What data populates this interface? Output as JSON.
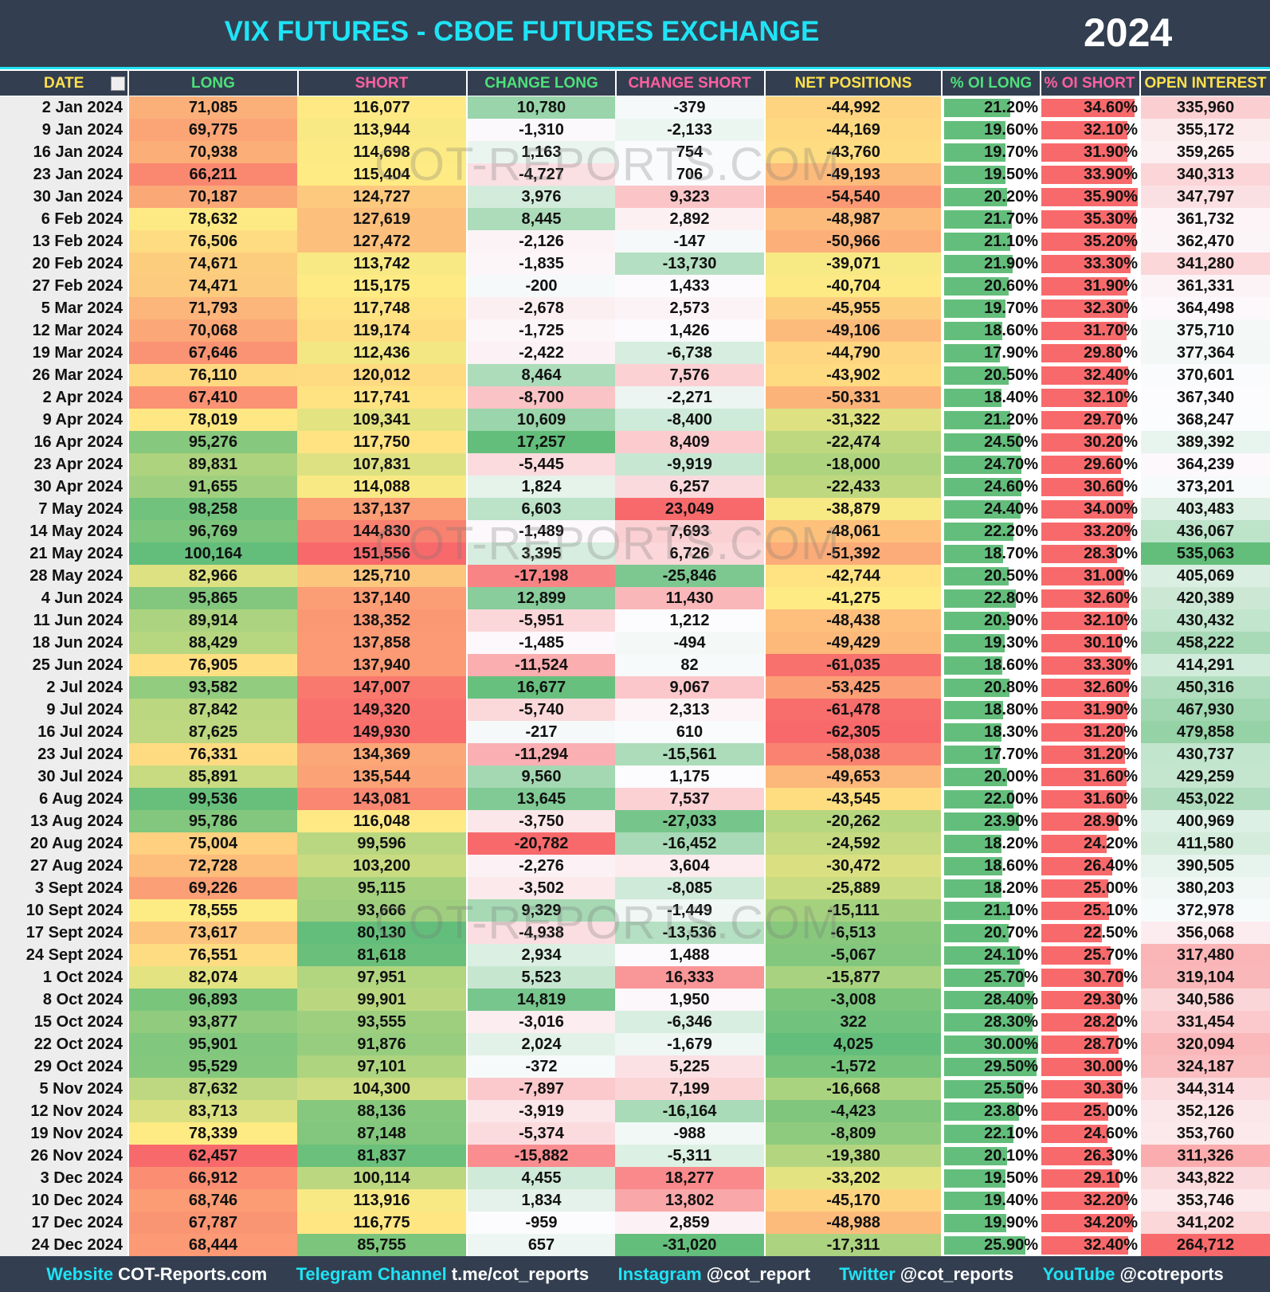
{
  "header": {
    "title": "VIX FUTURES - CBOE FUTURES EXCHANGE",
    "year": "2024"
  },
  "watermark": "COT-REPORTS.COM",
  "table": {
    "columns": [
      {
        "label": "DATE",
        "color": "#ffe14d"
      },
      {
        "label": "LONG",
        "color": "#4ee07a",
        "scale": "ryg"
      },
      {
        "label": "SHORT",
        "color": "#ff5fa0",
        "scale": "gyr"
      },
      {
        "label": "CHANGE LONG",
        "color": "#4ee07a",
        "scale": "rwg"
      },
      {
        "label": "CHANGE SHORT",
        "color": "#ff5fa0",
        "scale": "gwr"
      },
      {
        "label": "NET POSITIONS",
        "color": "#ffe14d",
        "scale": "ryg"
      },
      {
        "label": "% OI LONG",
        "color": "#4ee07a",
        "bar": "#63be7b"
      },
      {
        "label": "% OI SHORT",
        "color": "#ff5fa0",
        "bar": "#f8696b"
      },
      {
        "label": "OPEN INTEREST",
        "color": "#ffe14d",
        "scale": "rwg"
      }
    ],
    "rows": [
      [
        "2 Jan 2024",
        "71,085",
        "116,077",
        "10,780",
        "-379",
        "-44,992",
        "21.20%",
        "34.60%",
        "335,960"
      ],
      [
        "9 Jan 2024",
        "69,775",
        "113,944",
        "-1,310",
        "-2,133",
        "-44,169",
        "19.60%",
        "32.10%",
        "355,172"
      ],
      [
        "16 Jan 2024",
        "70,938",
        "114,698",
        "1,163",
        "754",
        "-43,760",
        "19.70%",
        "31.90%",
        "359,265"
      ],
      [
        "23 Jan 2024",
        "66,211",
        "115,404",
        "-4,727",
        "706",
        "-49,193",
        "19.50%",
        "33.90%",
        "340,313"
      ],
      [
        "30 Jan 2024",
        "70,187",
        "124,727",
        "3,976",
        "9,323",
        "-54,540",
        "20.20%",
        "35.90%",
        "347,797"
      ],
      [
        "6 Feb 2024",
        "78,632",
        "127,619",
        "8,445",
        "2,892",
        "-48,987",
        "21.70%",
        "35.30%",
        "361,732"
      ],
      [
        "13 Feb 2024",
        "76,506",
        "127,472",
        "-2,126",
        "-147",
        "-50,966",
        "21.10%",
        "35.20%",
        "362,470"
      ],
      [
        "20 Feb 2024",
        "74,671",
        "113,742",
        "-1,835",
        "-13,730",
        "-39,071",
        "21.90%",
        "33.30%",
        "341,280"
      ],
      [
        "27 Feb 2024",
        "74,471",
        "115,175",
        "-200",
        "1,433",
        "-40,704",
        "20.60%",
        "31.90%",
        "361,331"
      ],
      [
        "5 Mar 2024",
        "71,793",
        "117,748",
        "-2,678",
        "2,573",
        "-45,955",
        "19.70%",
        "32.30%",
        "364,498"
      ],
      [
        "12 Mar 2024",
        "70,068",
        "119,174",
        "-1,725",
        "1,426",
        "-49,106",
        "18.60%",
        "31.70%",
        "375,710"
      ],
      [
        "19 Mar 2024",
        "67,646",
        "112,436",
        "-2,422",
        "-6,738",
        "-44,790",
        "17.90%",
        "29.80%",
        "377,364"
      ],
      [
        "26 Mar 2024",
        "76,110",
        "120,012",
        "8,464",
        "7,576",
        "-43,902",
        "20.50%",
        "32.40%",
        "370,601"
      ],
      [
        "2 Apr 2024",
        "67,410",
        "117,741",
        "-8,700",
        "-2,271",
        "-50,331",
        "18.40%",
        "32.10%",
        "367,340"
      ],
      [
        "9 Apr 2024",
        "78,019",
        "109,341",
        "10,609",
        "-8,400",
        "-31,322",
        "21.20%",
        "29.70%",
        "368,247"
      ],
      [
        "16 Apr 2024",
        "95,276",
        "117,750",
        "17,257",
        "8,409",
        "-22,474",
        "24.50%",
        "30.20%",
        "389,392"
      ],
      [
        "23 Apr 2024",
        "89,831",
        "107,831",
        "-5,445",
        "-9,919",
        "-18,000",
        "24.70%",
        "29.60%",
        "364,239"
      ],
      [
        "30 Apr 2024",
        "91,655",
        "114,088",
        "1,824",
        "6,257",
        "-22,433",
        "24.60%",
        "30.60%",
        "373,201"
      ],
      [
        "7 May 2024",
        "98,258",
        "137,137",
        "6,603",
        "23,049",
        "-38,879",
        "24.40%",
        "34.00%",
        "403,483"
      ],
      [
        "14 May 2024",
        "96,769",
        "144,830",
        "-1,489",
        "7,693",
        "-48,061",
        "22.20%",
        "33.20%",
        "436,067"
      ],
      [
        "21 May 2024",
        "100,164",
        "151,556",
        "3,395",
        "6,726",
        "-51,392",
        "18.70%",
        "28.30%",
        "535,063"
      ],
      [
        "28 May 2024",
        "82,966",
        "125,710",
        "-17,198",
        "-25,846",
        "-42,744",
        "20.50%",
        "31.00%",
        "405,069"
      ],
      [
        "4 Jun 2024",
        "95,865",
        "137,140",
        "12,899",
        "11,430",
        "-41,275",
        "22.80%",
        "32.60%",
        "420,389"
      ],
      [
        "11 Jun 2024",
        "89,914",
        "138,352",
        "-5,951",
        "1,212",
        "-48,438",
        "20.90%",
        "32.10%",
        "430,432"
      ],
      [
        "18 Jun 2024",
        "88,429",
        "137,858",
        "-1,485",
        "-494",
        "-49,429",
        "19.30%",
        "30.10%",
        "458,222"
      ],
      [
        "25 Jun 2024",
        "76,905",
        "137,940",
        "-11,524",
        "82",
        "-61,035",
        "18.60%",
        "33.30%",
        "414,291"
      ],
      [
        "2 Jul 2024",
        "93,582",
        "147,007",
        "16,677",
        "9,067",
        "-53,425",
        "20.80%",
        "32.60%",
        "450,316"
      ],
      [
        "9 Jul 2024",
        "87,842",
        "149,320",
        "-5,740",
        "2,313",
        "-61,478",
        "18.80%",
        "31.90%",
        "467,930"
      ],
      [
        "16 Jul 2024",
        "87,625",
        "149,930",
        "-217",
        "610",
        "-62,305",
        "18.30%",
        "31.20%",
        "479,858"
      ],
      [
        "23 Jul 2024",
        "76,331",
        "134,369",
        "-11,294",
        "-15,561",
        "-58,038",
        "17.70%",
        "31.20%",
        "430,737"
      ],
      [
        "30 Jul 2024",
        "85,891",
        "135,544",
        "9,560",
        "1,175",
        "-49,653",
        "20.00%",
        "31.60%",
        "429,259"
      ],
      [
        "6 Aug 2024",
        "99,536",
        "143,081",
        "13,645",
        "7,537",
        "-43,545",
        "22.00%",
        "31.60%",
        "453,022"
      ],
      [
        "13 Aug 2024",
        "95,786",
        "116,048",
        "-3,750",
        "-27,033",
        "-20,262",
        "23.90%",
        "28.90%",
        "400,969"
      ],
      [
        "20 Aug 2024",
        "75,004",
        "99,596",
        "-20,782",
        "-16,452",
        "-24,592",
        "18.20%",
        "24.20%",
        "411,580"
      ],
      [
        "27 Aug 2024",
        "72,728",
        "103,200",
        "-2,276",
        "3,604",
        "-30,472",
        "18.60%",
        "26.40%",
        "390,505"
      ],
      [
        "3 Sept 2024",
        "69,226",
        "95,115",
        "-3,502",
        "-8,085",
        "-25,889",
        "18.20%",
        "25.00%",
        "380,203"
      ],
      [
        "10 Sept 2024",
        "78,555",
        "93,666",
        "9,329",
        "-1,449",
        "-15,111",
        "21.10%",
        "25.10%",
        "372,978"
      ],
      [
        "17 Sept 2024",
        "73,617",
        "80,130",
        "-4,938",
        "-13,536",
        "-6,513",
        "20.70%",
        "22.50%",
        "356,068"
      ],
      [
        "24 Sept 2024",
        "76,551",
        "81,618",
        "2,934",
        "1,488",
        "-5,067",
        "24.10%",
        "25.70%",
        "317,480"
      ],
      [
        "1 Oct 2024",
        "82,074",
        "97,951",
        "5,523",
        "16,333",
        "-15,877",
        "25.70%",
        "30.70%",
        "319,104"
      ],
      [
        "8 Oct 2024",
        "96,893",
        "99,901",
        "14,819",
        "1,950",
        "-3,008",
        "28.40%",
        "29.30%",
        "340,586"
      ],
      [
        "15 Oct 2024",
        "93,877",
        "93,555",
        "-3,016",
        "-6,346",
        "322",
        "28.30%",
        "28.20%",
        "331,454"
      ],
      [
        "22 Oct 2024",
        "95,901",
        "91,876",
        "2,024",
        "-1,679",
        "4,025",
        "30.00%",
        "28.70%",
        "320,094"
      ],
      [
        "29 Oct 2024",
        "95,529",
        "97,101",
        "-372",
        "5,225",
        "-1,572",
        "29.50%",
        "30.00%",
        "324,187"
      ],
      [
        "5 Nov 2024",
        "87,632",
        "104,300",
        "-7,897",
        "7,199",
        "-16,668",
        "25.50%",
        "30.30%",
        "344,314"
      ],
      [
        "12 Nov 2024",
        "83,713",
        "88,136",
        "-3,919",
        "-16,164",
        "-4,423",
        "23.80%",
        "25.00%",
        "352,126"
      ],
      [
        "19 Nov 2024",
        "78,339",
        "87,148",
        "-5,374",
        "-988",
        "-8,809",
        "22.10%",
        "24.60%",
        "353,760"
      ],
      [
        "26 Nov 2024",
        "62,457",
        "81,837",
        "-15,882",
        "-5,311",
        "-19,380",
        "20.10%",
        "26.30%",
        "311,326"
      ],
      [
        "3 Dec 2024",
        "66,912",
        "100,114",
        "4,455",
        "18,277",
        "-33,202",
        "19.50%",
        "29.10%",
        "343,822"
      ],
      [
        "10 Dec 2024",
        "68,746",
        "113,916",
        "1,834",
        "13,802",
        "-45,170",
        "19.40%",
        "32.20%",
        "353,746"
      ],
      [
        "17 Dec 2024",
        "67,787",
        "116,775",
        "-959",
        "2,859",
        "-48,988",
        "19.90%",
        "34.20%",
        "341,202"
      ],
      [
        "24 Dec 2024",
        "68,444",
        "85,755",
        "657",
        "-31,020",
        "-17,311",
        "25.90%",
        "32.40%",
        "264,712"
      ]
    ]
  },
  "footer": [
    {
      "label": "Website",
      "value": "COT-Reports.com"
    },
    {
      "label": "Telegram Channel",
      "value": "t.me/cot_reports"
    },
    {
      "label": "Instagram",
      "value": "@cot_report"
    },
    {
      "label": "Twitter",
      "value": "@cot_reports"
    },
    {
      "label": "YouTube",
      "value": "@cotreports"
    }
  ]
}
